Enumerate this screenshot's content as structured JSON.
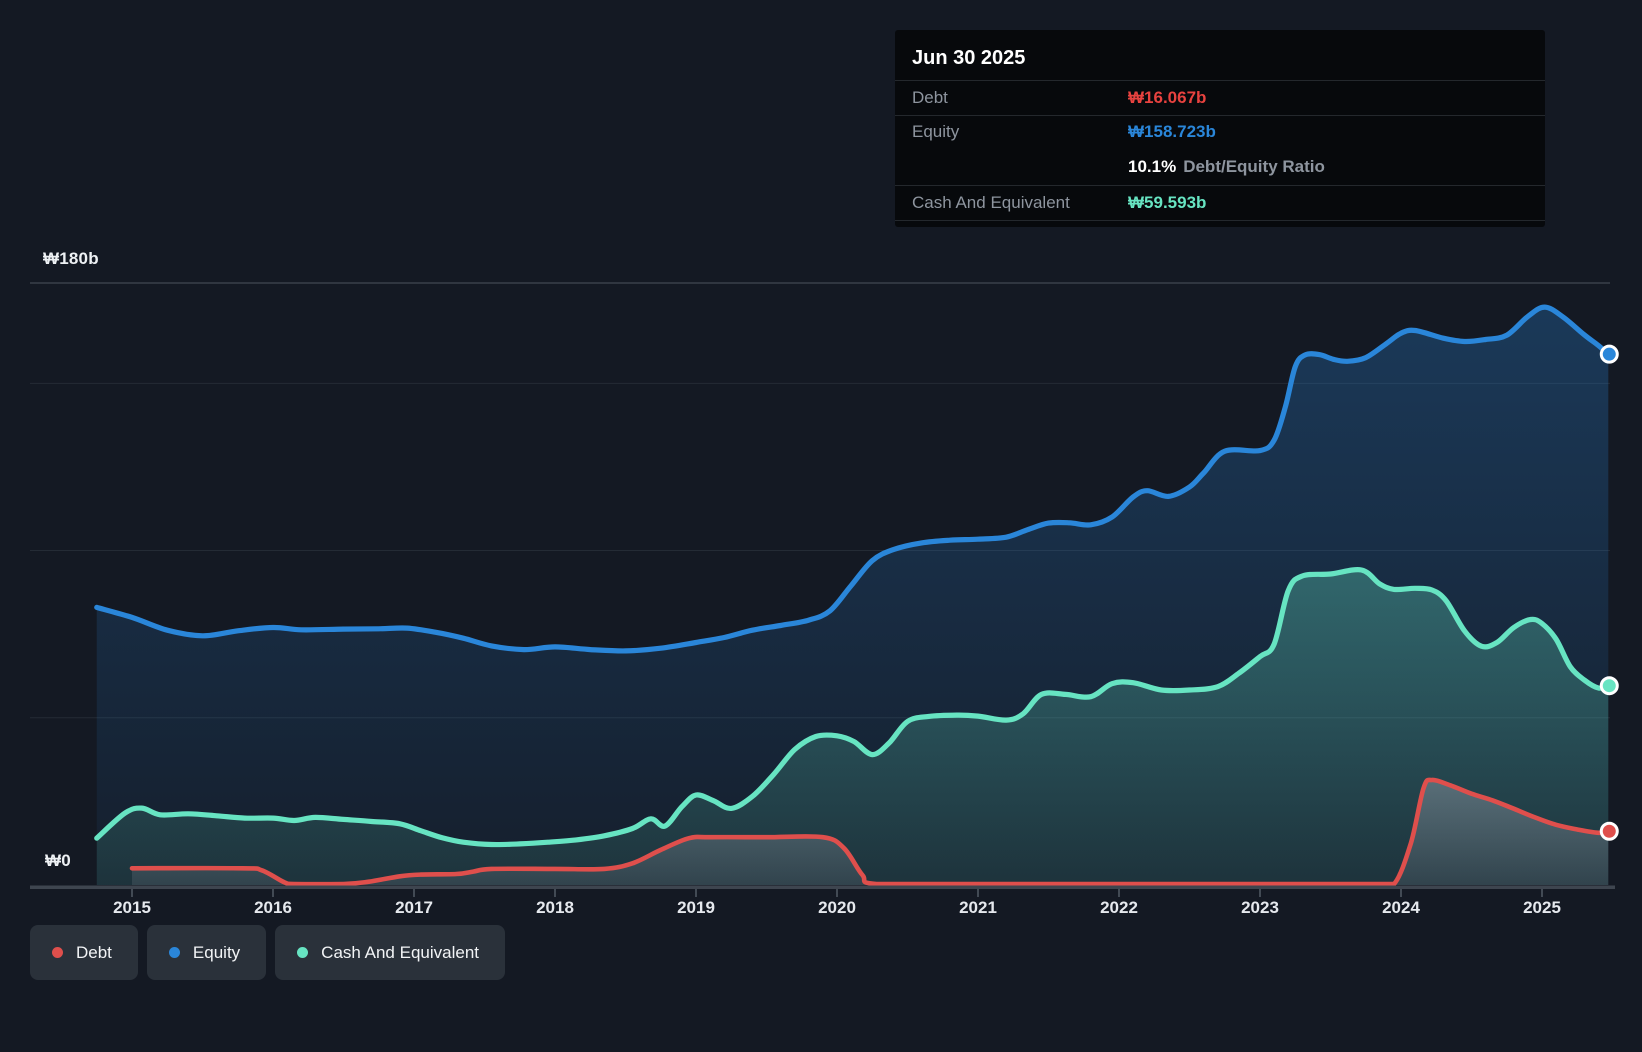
{
  "tooltip": {
    "date": "Jun 30 2025",
    "rows": [
      {
        "label": "Debt",
        "value": "₩16.067b",
        "color": "debt"
      },
      {
        "label": "Equity",
        "value": "₩158.723b",
        "color": "equity"
      },
      {
        "ratio_pct": "10.1%",
        "ratio_text": "Debt/Equity Ratio"
      },
      {
        "label": "Cash And Equivalent",
        "value": "₩59.593b",
        "color": "cash"
      }
    ]
  },
  "y_axis": {
    "top_label": "₩180b",
    "zero_label": "₩0"
  },
  "x_axis": {
    "ticks": [
      "2015",
      "2016",
      "2017",
      "2018",
      "2019",
      "2020",
      "2021",
      "2022",
      "2023",
      "2024",
      "2025"
    ]
  },
  "legend": [
    {
      "label": "Debt",
      "color": "debt"
    },
    {
      "label": "Equity",
      "color": "equity"
    },
    {
      "label": "Cash And Equivalent",
      "color": "cash"
    }
  ],
  "colors": {
    "debt": "#df4f4c",
    "equity": "#2a86d9",
    "cash": "#67e4c2",
    "debt_value": "#e8423f",
    "gridline": "#242b35",
    "gridline_top": "#3a414b",
    "axis": "#3e454f",
    "tick": "#515a64"
  },
  "chart_data": {
    "type": "area",
    "unit": "₩ billions (KRW)",
    "x_range": [
      2014.75,
      2025.5
    ],
    "y_range": [
      0,
      180
    ],
    "y_gridlines_values": [
      180,
      150,
      100,
      50
    ],
    "legend_position": "bottom-left",
    "series": [
      {
        "name": "Equity",
        "color_key": "equity",
        "points": [
          [
            2014.75,
            83
          ],
          [
            2015,
            80
          ],
          [
            2015.25,
            76.2
          ],
          [
            2015.5,
            74.5
          ],
          [
            2015.75,
            76
          ],
          [
            2016,
            77
          ],
          [
            2016.2,
            76.3
          ],
          [
            2016.5,
            76.5
          ],
          [
            2016.75,
            76.6
          ],
          [
            2016.95,
            76.8
          ],
          [
            2017.15,
            75.6
          ],
          [
            2017.35,
            73.8
          ],
          [
            2017.55,
            71.5
          ],
          [
            2017.78,
            70.4
          ],
          [
            2018,
            71.2
          ],
          [
            2018.25,
            70.4
          ],
          [
            2018.5,
            70
          ],
          [
            2018.75,
            70.8
          ],
          [
            2019,
            72.5
          ],
          [
            2019.2,
            74
          ],
          [
            2019.4,
            76.2
          ],
          [
            2019.6,
            77.6
          ],
          [
            2019.8,
            79.2
          ],
          [
            2019.95,
            82
          ],
          [
            2020.1,
            89.5
          ],
          [
            2020.25,
            97
          ],
          [
            2020.4,
            100.3
          ],
          [
            2020.6,
            102.3
          ],
          [
            2020.8,
            103.1
          ],
          [
            2021,
            103.4
          ],
          [
            2021.2,
            104
          ],
          [
            2021.35,
            106.2
          ],
          [
            2021.5,
            108.2
          ],
          [
            2021.65,
            108.3
          ],
          [
            2021.8,
            107.7
          ],
          [
            2021.95,
            110
          ],
          [
            2022.1,
            116
          ],
          [
            2022.2,
            117.9
          ],
          [
            2022.35,
            116.2
          ],
          [
            2022.5,
            119
          ],
          [
            2022.6,
            123.2
          ],
          [
            2022.75,
            129.7
          ],
          [
            2023,
            129.9
          ],
          [
            2023.1,
            133
          ],
          [
            2023.18,
            143
          ],
          [
            2023.25,
            155
          ],
          [
            2023.32,
            158.5
          ],
          [
            2023.42,
            158.6
          ],
          [
            2023.52,
            157.2
          ],
          [
            2023.62,
            156.6
          ],
          [
            2023.75,
            157.7
          ],
          [
            2023.9,
            162
          ],
          [
            2024,
            165
          ],
          [
            2024.1,
            165.8
          ],
          [
            2024.3,
            163.5
          ],
          [
            2024.45,
            162.5
          ],
          [
            2024.6,
            163.1
          ],
          [
            2024.75,
            164.4
          ],
          [
            2024.9,
            170
          ],
          [
            2025.02,
            172.8
          ],
          [
            2025.15,
            169.8
          ],
          [
            2025.3,
            164.5
          ],
          [
            2025.4,
            161.3
          ],
          [
            2025.47,
            158.723
          ]
        ]
      },
      {
        "name": "Cash And Equivalent",
        "color_key": "cash",
        "points": [
          [
            2014.75,
            14
          ],
          [
            2014.95,
            21.5
          ],
          [
            2015.07,
            23
          ],
          [
            2015.2,
            21
          ],
          [
            2015.4,
            21.3
          ],
          [
            2015.6,
            20.7
          ],
          [
            2015.8,
            20
          ],
          [
            2016,
            20
          ],
          [
            2016.15,
            19.3
          ],
          [
            2016.3,
            20.2
          ],
          [
            2016.5,
            19.6
          ],
          [
            2016.7,
            19
          ],
          [
            2016.9,
            18.3
          ],
          [
            2017.05,
            16.2
          ],
          [
            2017.2,
            14.1
          ],
          [
            2017.35,
            12.8
          ],
          [
            2017.55,
            12.1
          ],
          [
            2017.75,
            12.3
          ],
          [
            2017.95,
            12.8
          ],
          [
            2018.15,
            13.5
          ],
          [
            2018.35,
            14.7
          ],
          [
            2018.55,
            16.9
          ],
          [
            2018.68,
            19.8
          ],
          [
            2018.78,
            17.6
          ],
          [
            2018.9,
            23.4
          ],
          [
            2019,
            26.9
          ],
          [
            2019.12,
            25.3
          ],
          [
            2019.25,
            22.9
          ],
          [
            2019.4,
            26.5
          ],
          [
            2019.55,
            33
          ],
          [
            2019.7,
            40.5
          ],
          [
            2019.85,
            44.4
          ],
          [
            2020,
            44.6
          ],
          [
            2020.12,
            42.9
          ],
          [
            2020.25,
            39
          ],
          [
            2020.37,
            42.5
          ],
          [
            2020.5,
            48.9
          ],
          [
            2020.65,
            50.4
          ],
          [
            2020.85,
            50.8
          ],
          [
            2021,
            50.5
          ],
          [
            2021.2,
            49.3
          ],
          [
            2021.32,
            51.2
          ],
          [
            2021.45,
            57
          ],
          [
            2021.62,
            57
          ],
          [
            2021.8,
            56.3
          ],
          [
            2021.95,
            60.2
          ],
          [
            2022.1,
            60.5
          ],
          [
            2022.3,
            58.3
          ],
          [
            2022.5,
            58.3
          ],
          [
            2022.7,
            59.3
          ],
          [
            2022.85,
            63.3
          ],
          [
            2023,
            68.3
          ],
          [
            2023.1,
            72
          ],
          [
            2023.2,
            88
          ],
          [
            2023.3,
            92.4
          ],
          [
            2023.5,
            93
          ],
          [
            2023.72,
            94.2
          ],
          [
            2023.85,
            90
          ],
          [
            2023.95,
            88.4
          ],
          [
            2024.1,
            88.7
          ],
          [
            2024.22,
            88.2
          ],
          [
            2024.32,
            85
          ],
          [
            2024.45,
            76
          ],
          [
            2024.57,
            71.4
          ],
          [
            2024.68,
            72.5
          ],
          [
            2024.8,
            77
          ],
          [
            2024.92,
            79.4
          ],
          [
            2025,
            78.2
          ],
          [
            2025.1,
            73.5
          ],
          [
            2025.2,
            65.3
          ],
          [
            2025.3,
            61.3
          ],
          [
            2025.4,
            58.9
          ],
          [
            2025.47,
            59.593
          ]
        ]
      },
      {
        "name": "Debt",
        "color_key": "debt",
        "points": [
          [
            2015,
            5
          ],
          [
            2015.78,
            5
          ],
          [
            2015.92,
            4.4
          ],
          [
            2016.08,
            0.8
          ],
          [
            2016.15,
            0.3
          ],
          [
            2016.5,
            0.3
          ],
          [
            2016.68,
            1
          ],
          [
            2016.9,
            2.6
          ],
          [
            2017.05,
            3.1
          ],
          [
            2017.3,
            3.3
          ],
          [
            2017.42,
            4
          ],
          [
            2017.55,
            4.8
          ],
          [
            2018,
            4.8
          ],
          [
            2018.35,
            4.8
          ],
          [
            2018.55,
            6.5
          ],
          [
            2018.75,
            10.5
          ],
          [
            2018.95,
            14
          ],
          [
            2019.1,
            14.3
          ],
          [
            2019.5,
            14.3
          ],
          [
            2019.9,
            14.3
          ],
          [
            2020.05,
            11
          ],
          [
            2020.18,
            3
          ],
          [
            2020.28,
            0.3
          ],
          [
            2021,
            0.3
          ],
          [
            2022,
            0.3
          ],
          [
            2023,
            0.3
          ],
          [
            2023.8,
            0.3
          ],
          [
            2023.95,
            0.3
          ],
          [
            2024.07,
            12.5
          ],
          [
            2024.16,
            29
          ],
          [
            2024.22,
            31.4
          ],
          [
            2024.35,
            29.8
          ],
          [
            2024.5,
            27.3
          ],
          [
            2024.65,
            25.3
          ],
          [
            2024.8,
            22.8
          ],
          [
            2024.95,
            20.2
          ],
          [
            2025.1,
            18
          ],
          [
            2025.25,
            16.6
          ],
          [
            2025.4,
            15.6
          ],
          [
            2025.47,
            16.067
          ]
        ]
      }
    ]
  }
}
